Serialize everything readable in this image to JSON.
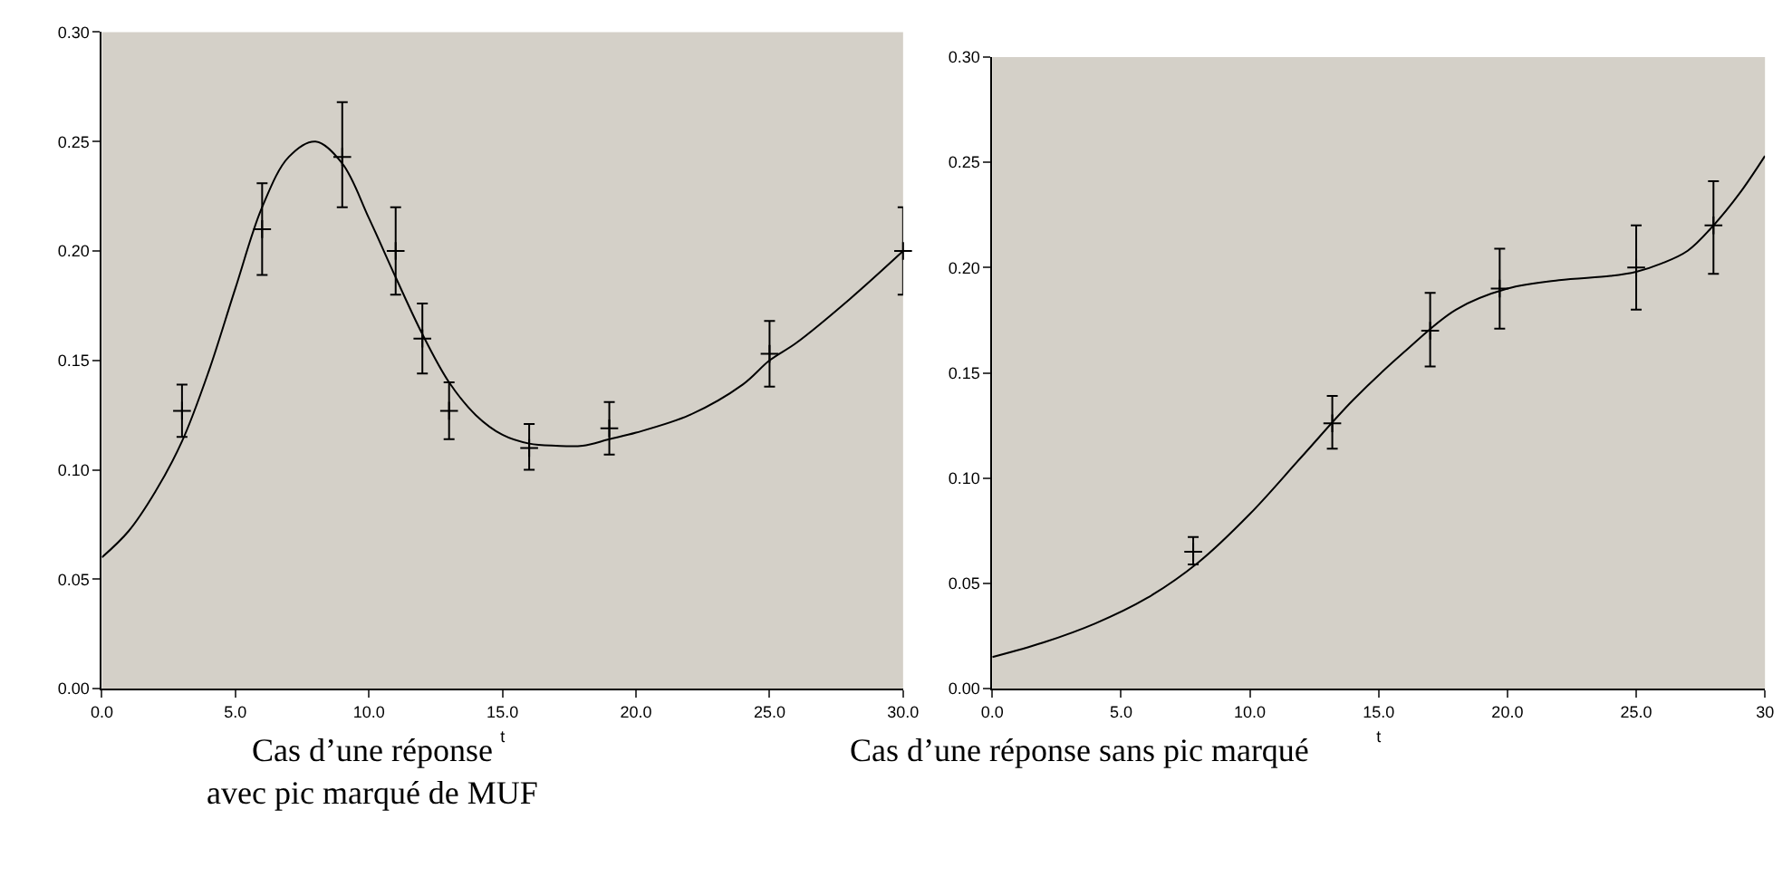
{
  "chart_data": [
    {
      "type": "scatter",
      "xlabel": "t",
      "xlim": [
        0,
        30
      ],
      "ylim": [
        0,
        0.3
      ],
      "xticks": [
        {
          "value": 0,
          "label": "0.0"
        },
        {
          "value": 5,
          "label": "5.0"
        },
        {
          "value": 10,
          "label": "10.0"
        },
        {
          "value": 15,
          "label": "15.0"
        },
        {
          "value": 20,
          "label": "20.0"
        },
        {
          "value": 25,
          "label": "25.0"
        },
        {
          "value": 30,
          "label": "30.0"
        }
      ],
      "yticks": [
        {
          "value": 0,
          "label": "0.00"
        },
        {
          "value": 0.05,
          "label": "0.05"
        },
        {
          "value": 0.1,
          "label": "0.10"
        },
        {
          "value": 0.15,
          "label": "0.15"
        },
        {
          "value": 0.2,
          "label": "0.20"
        },
        {
          "value": 0.25,
          "label": "0.25"
        },
        {
          "value": 0.3,
          "label": "0.30"
        }
      ],
      "grid": false,
      "annotations": [
        "Cas d’une réponse\navec pic marqué de MUF"
      ],
      "series": [
        {
          "marker": "cross",
          "color": "#000000",
          "x": [
            3,
            6,
            9,
            11,
            12,
            13,
            16,
            19,
            25,
            30
          ],
          "values": [
            0.127,
            0.21,
            0.243,
            0.2,
            0.16,
            0.127,
            0.11,
            0.119,
            0.153,
            0.2
          ],
          "errors": [
            [
              0.115,
              0.139
            ],
            [
              0.189,
              0.231
            ],
            [
              0.22,
              0.268
            ],
            [
              0.18,
              0.22
            ],
            [
              0.144,
              0.176
            ],
            [
              0.114,
              0.14
            ],
            [
              0.1,
              0.121
            ],
            [
              0.107,
              0.131
            ],
            [
              0.138,
              0.168
            ],
            [
              0.18,
              0.22
            ]
          ]
        },
        {
          "type": "line",
          "color": "#000000",
          "x": [
            0,
            1,
            2,
            3,
            4,
            5,
            6,
            7,
            8,
            9,
            10,
            11,
            12,
            13,
            14,
            15,
            16,
            17,
            18,
            19,
            20,
            22,
            24,
            25,
            26,
            28,
            30
          ],
          "values": [
            0.06,
            0.072,
            0.09,
            0.113,
            0.145,
            0.183,
            0.22,
            0.243,
            0.25,
            0.24,
            0.215,
            0.188,
            0.162,
            0.14,
            0.125,
            0.116,
            0.112,
            0.111,
            0.111,
            0.114,
            0.117,
            0.125,
            0.139,
            0.15,
            0.158,
            0.178,
            0.2
          ]
        }
      ]
    },
    {
      "type": "scatter",
      "xlabel": "t",
      "xlim": [
        0,
        30
      ],
      "ylim": [
        0,
        0.3
      ],
      "xticks": [
        {
          "value": 0,
          "label": "0.0"
        },
        {
          "value": 5,
          "label": "5.0"
        },
        {
          "value": 10,
          "label": "10.0"
        },
        {
          "value": 15,
          "label": "15.0"
        },
        {
          "value": 20,
          "label": "20.0"
        },
        {
          "value": 25,
          "label": "25.0"
        },
        {
          "value": 30,
          "label": "30"
        }
      ],
      "yticks": [
        {
          "value": 0,
          "label": "0.00"
        },
        {
          "value": 0.05,
          "label": "0.05"
        },
        {
          "value": 0.1,
          "label": "0.10"
        },
        {
          "value": 0.15,
          "label": "0.15"
        },
        {
          "value": 0.2,
          "label": "0.20"
        },
        {
          "value": 0.25,
          "label": "0.25"
        },
        {
          "value": 0.3,
          "label": "0.30"
        }
      ],
      "grid": false,
      "annotations": [
        "Cas d’une réponse sans pic marqué"
      ],
      "series": [
        {
          "marker": "cross",
          "color": "#000000",
          "x": [
            7.8,
            13.2,
            17,
            19.7,
            25,
            28
          ],
          "values": [
            0.065,
            0.126,
            0.17,
            0.19,
            0.2,
            0.22
          ],
          "errors": [
            [
              0.059,
              0.072
            ],
            [
              0.114,
              0.139
            ],
            [
              0.153,
              0.188
            ],
            [
              0.171,
              0.209
            ],
            [
              0.18,
              0.22
            ],
            [
              0.197,
              0.241
            ]
          ]
        },
        {
          "type": "line",
          "color": "#000000",
          "x": [
            0,
            2,
            4,
            6,
            8,
            10,
            12,
            14,
            16,
            18,
            20,
            22,
            24,
            25,
            26,
            27,
            28,
            29,
            30
          ],
          "values": [
            0.015,
            0.022,
            0.031,
            0.043,
            0.06,
            0.083,
            0.11,
            0.137,
            0.16,
            0.18,
            0.19,
            0.194,
            0.196,
            0.198,
            0.202,
            0.208,
            0.22,
            0.235,
            0.253
          ]
        }
      ]
    }
  ]
}
